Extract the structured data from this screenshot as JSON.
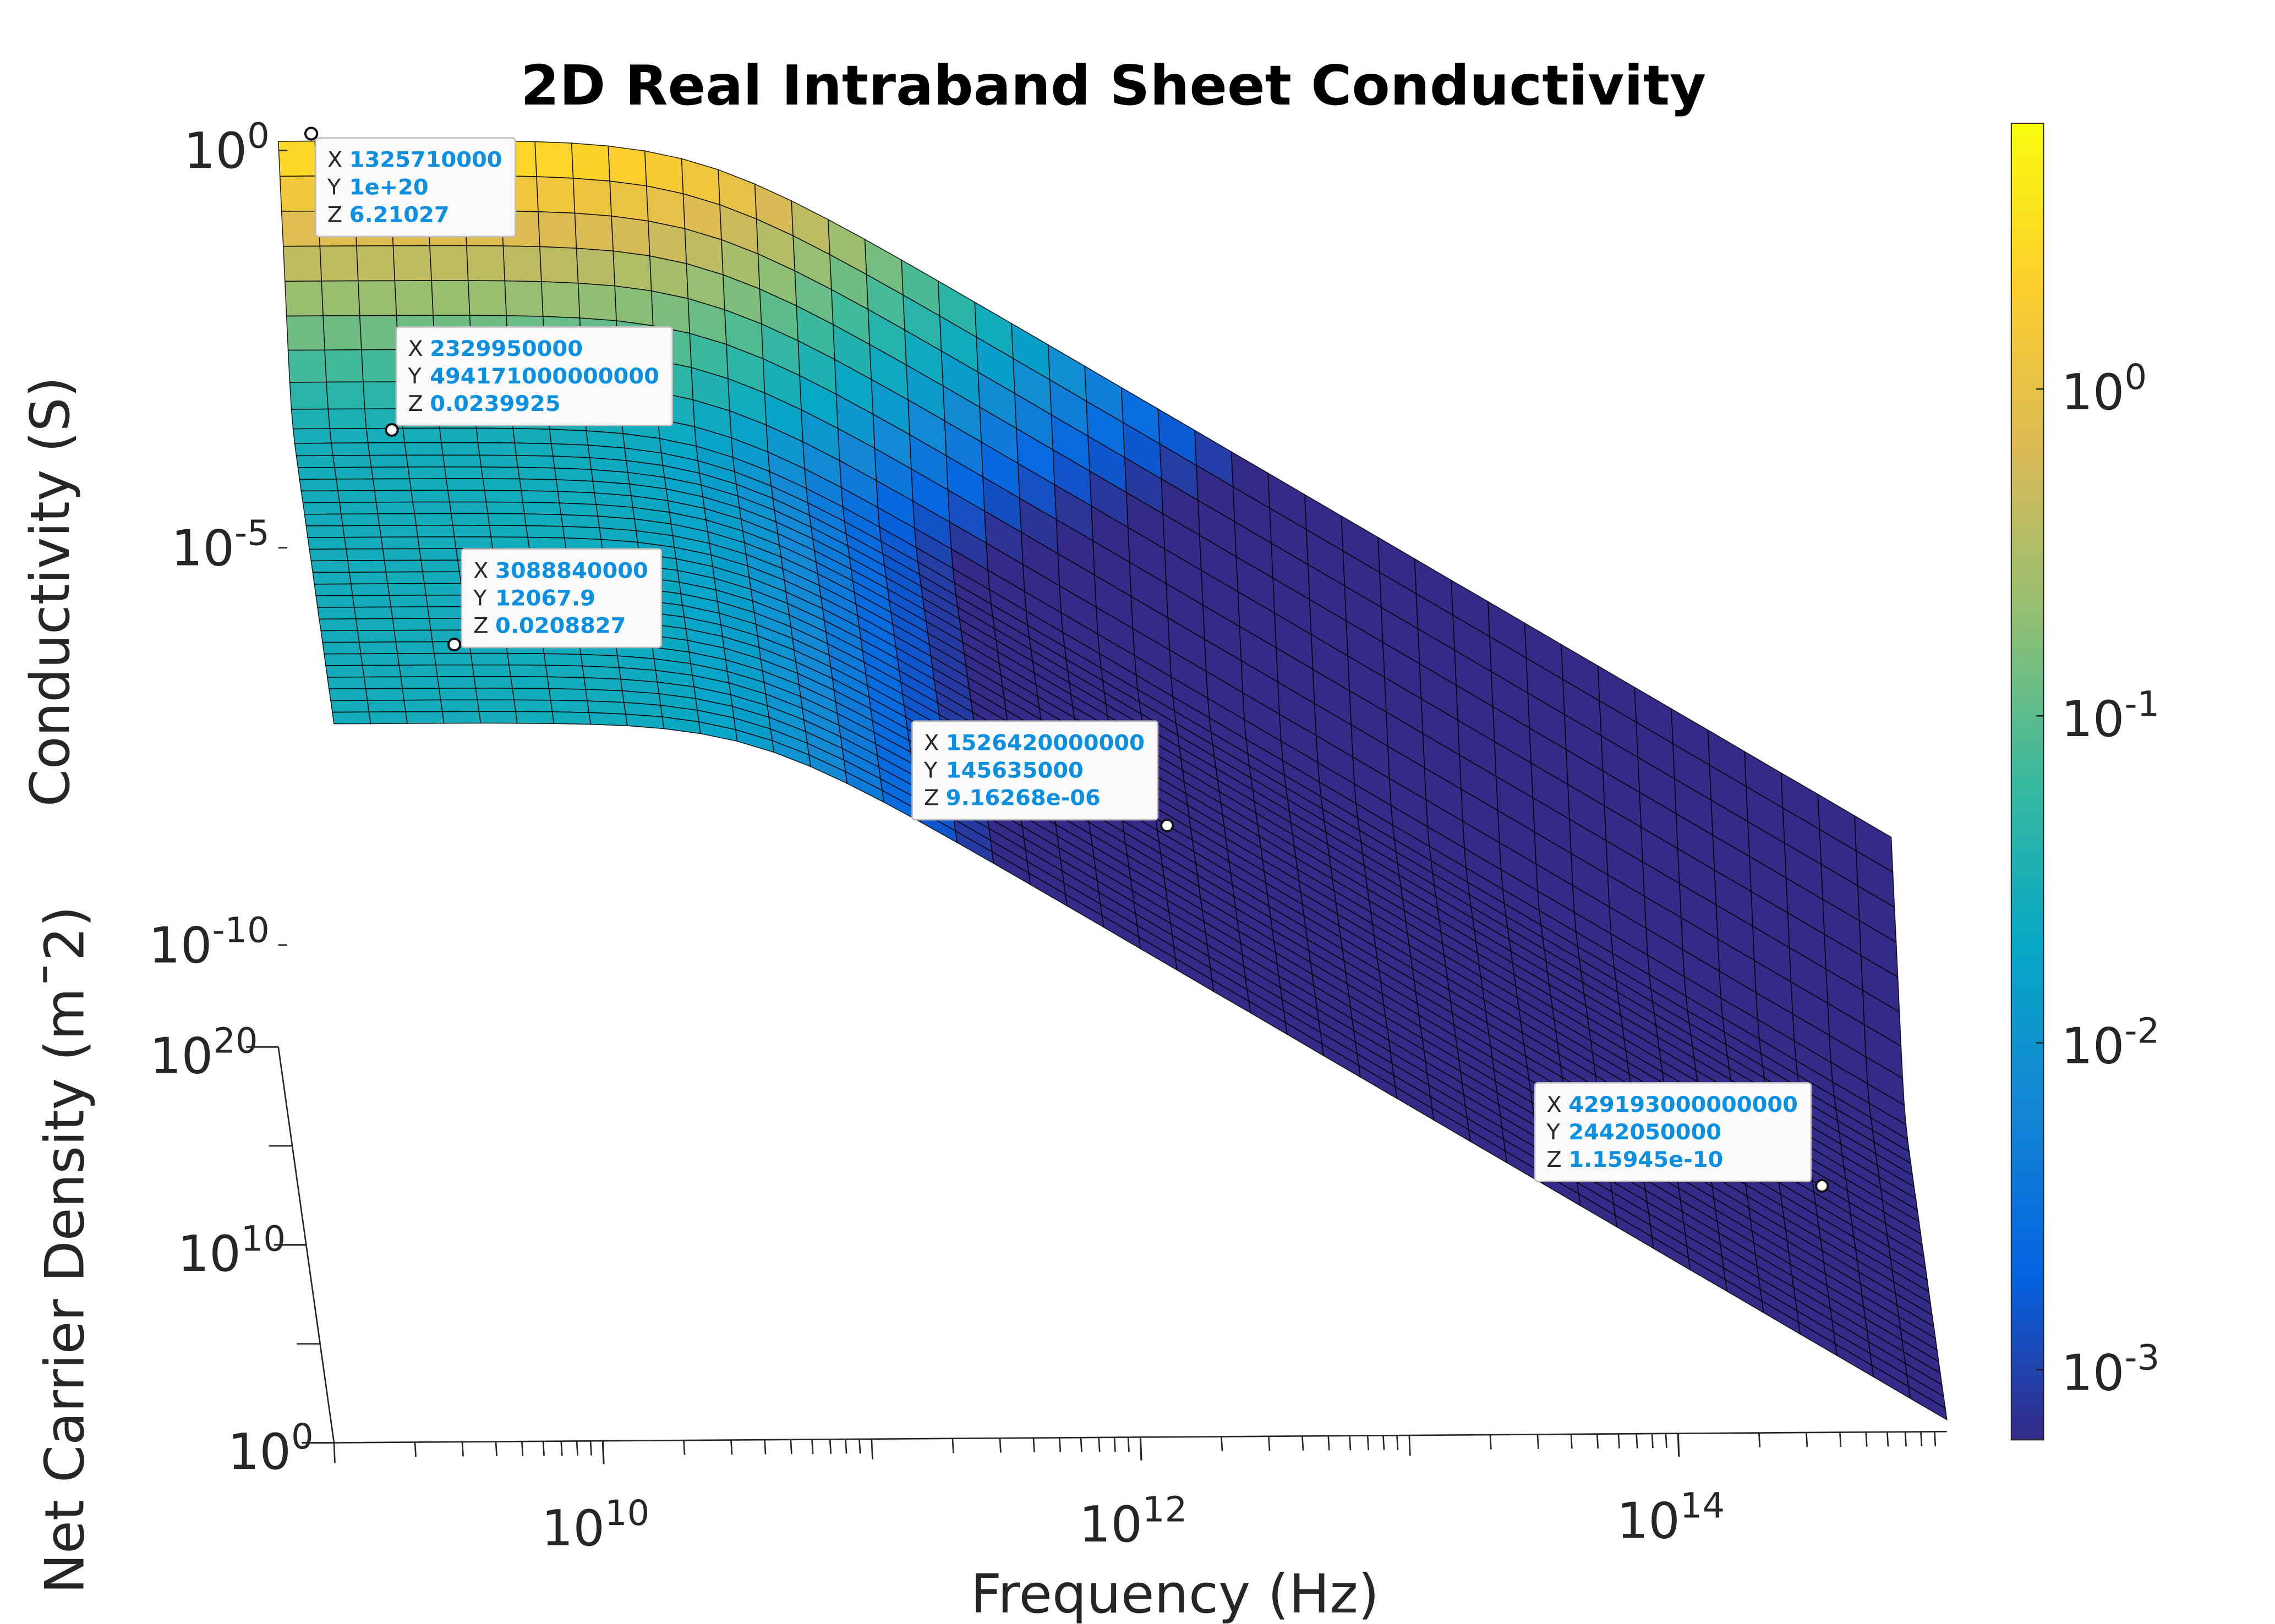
{
  "chart_data": {
    "type": "surface",
    "title": "2D Real Intraband Sheet Conductivity",
    "xlabel": "Frequency (Hz)",
    "ylabel": "Net Carrier Density (m¯2)",
    "zlabel": "Conductivity (S)",
    "xscale": "log",
    "yscale": "log",
    "zscale": "log",
    "xlim": [
      1000000000,
      1000000000000000
    ],
    "ylim": [
      1,
      1e+20
    ],
    "zlim": [
      2e-11,
      10
    ],
    "xticks": [
      {
        "value": 10000000000,
        "label": "10^10"
      },
      {
        "value": 1000000000000,
        "label": "10^12"
      },
      {
        "value": 100000000000000,
        "label": "10^14"
      }
    ],
    "yticks": [
      {
        "value": 1,
        "label": "10^0"
      },
      {
        "value": 10000000000,
        "label": "10^10"
      },
      {
        "value": 1e+20,
        "label": "10^20"
      }
    ],
    "zticks": [
      {
        "value": 1e-10,
        "label": "10^-10"
      },
      {
        "value": 1e-05,
        "label": "10^-5"
      },
      {
        "value": 1,
        "label": "10^0"
      }
    ],
    "colorbar": {
      "scale": "log",
      "clim": [
        0.00061,
        6.5
      ],
      "ticks": [
        {
          "value": 0.001,
          "label": "10^-3"
        },
        {
          "value": 0.01,
          "label": "10^-2"
        },
        {
          "value": 0.1,
          "label": "10^-1"
        },
        {
          "value": 1,
          "label": "10^0"
        }
      ]
    },
    "datatip_labels": [
      "X",
      "Y",
      "Z"
    ],
    "datatips": [
      {
        "x": 1325710000,
        "y": {
          "value": 1e+20,
          "label": "1e+20"
        },
        "z": 6.21027
      },
      {
        "x": 2329950000,
        "y": 494171000000000,
        "z": 0.0239925
      },
      {
        "x": 3088840000,
        "y": 12067.9,
        "z": 0.0208827
      },
      {
        "x": 1526420000000,
        "y": 145635000,
        "z": {
          "value": 9.16268e-06,
          "label": "9.16268e-06"
        }
      },
      {
        "x": 429193000000000,
        "y": 2442050000,
        "z": 1.15945e-10
      }
    ]
  }
}
